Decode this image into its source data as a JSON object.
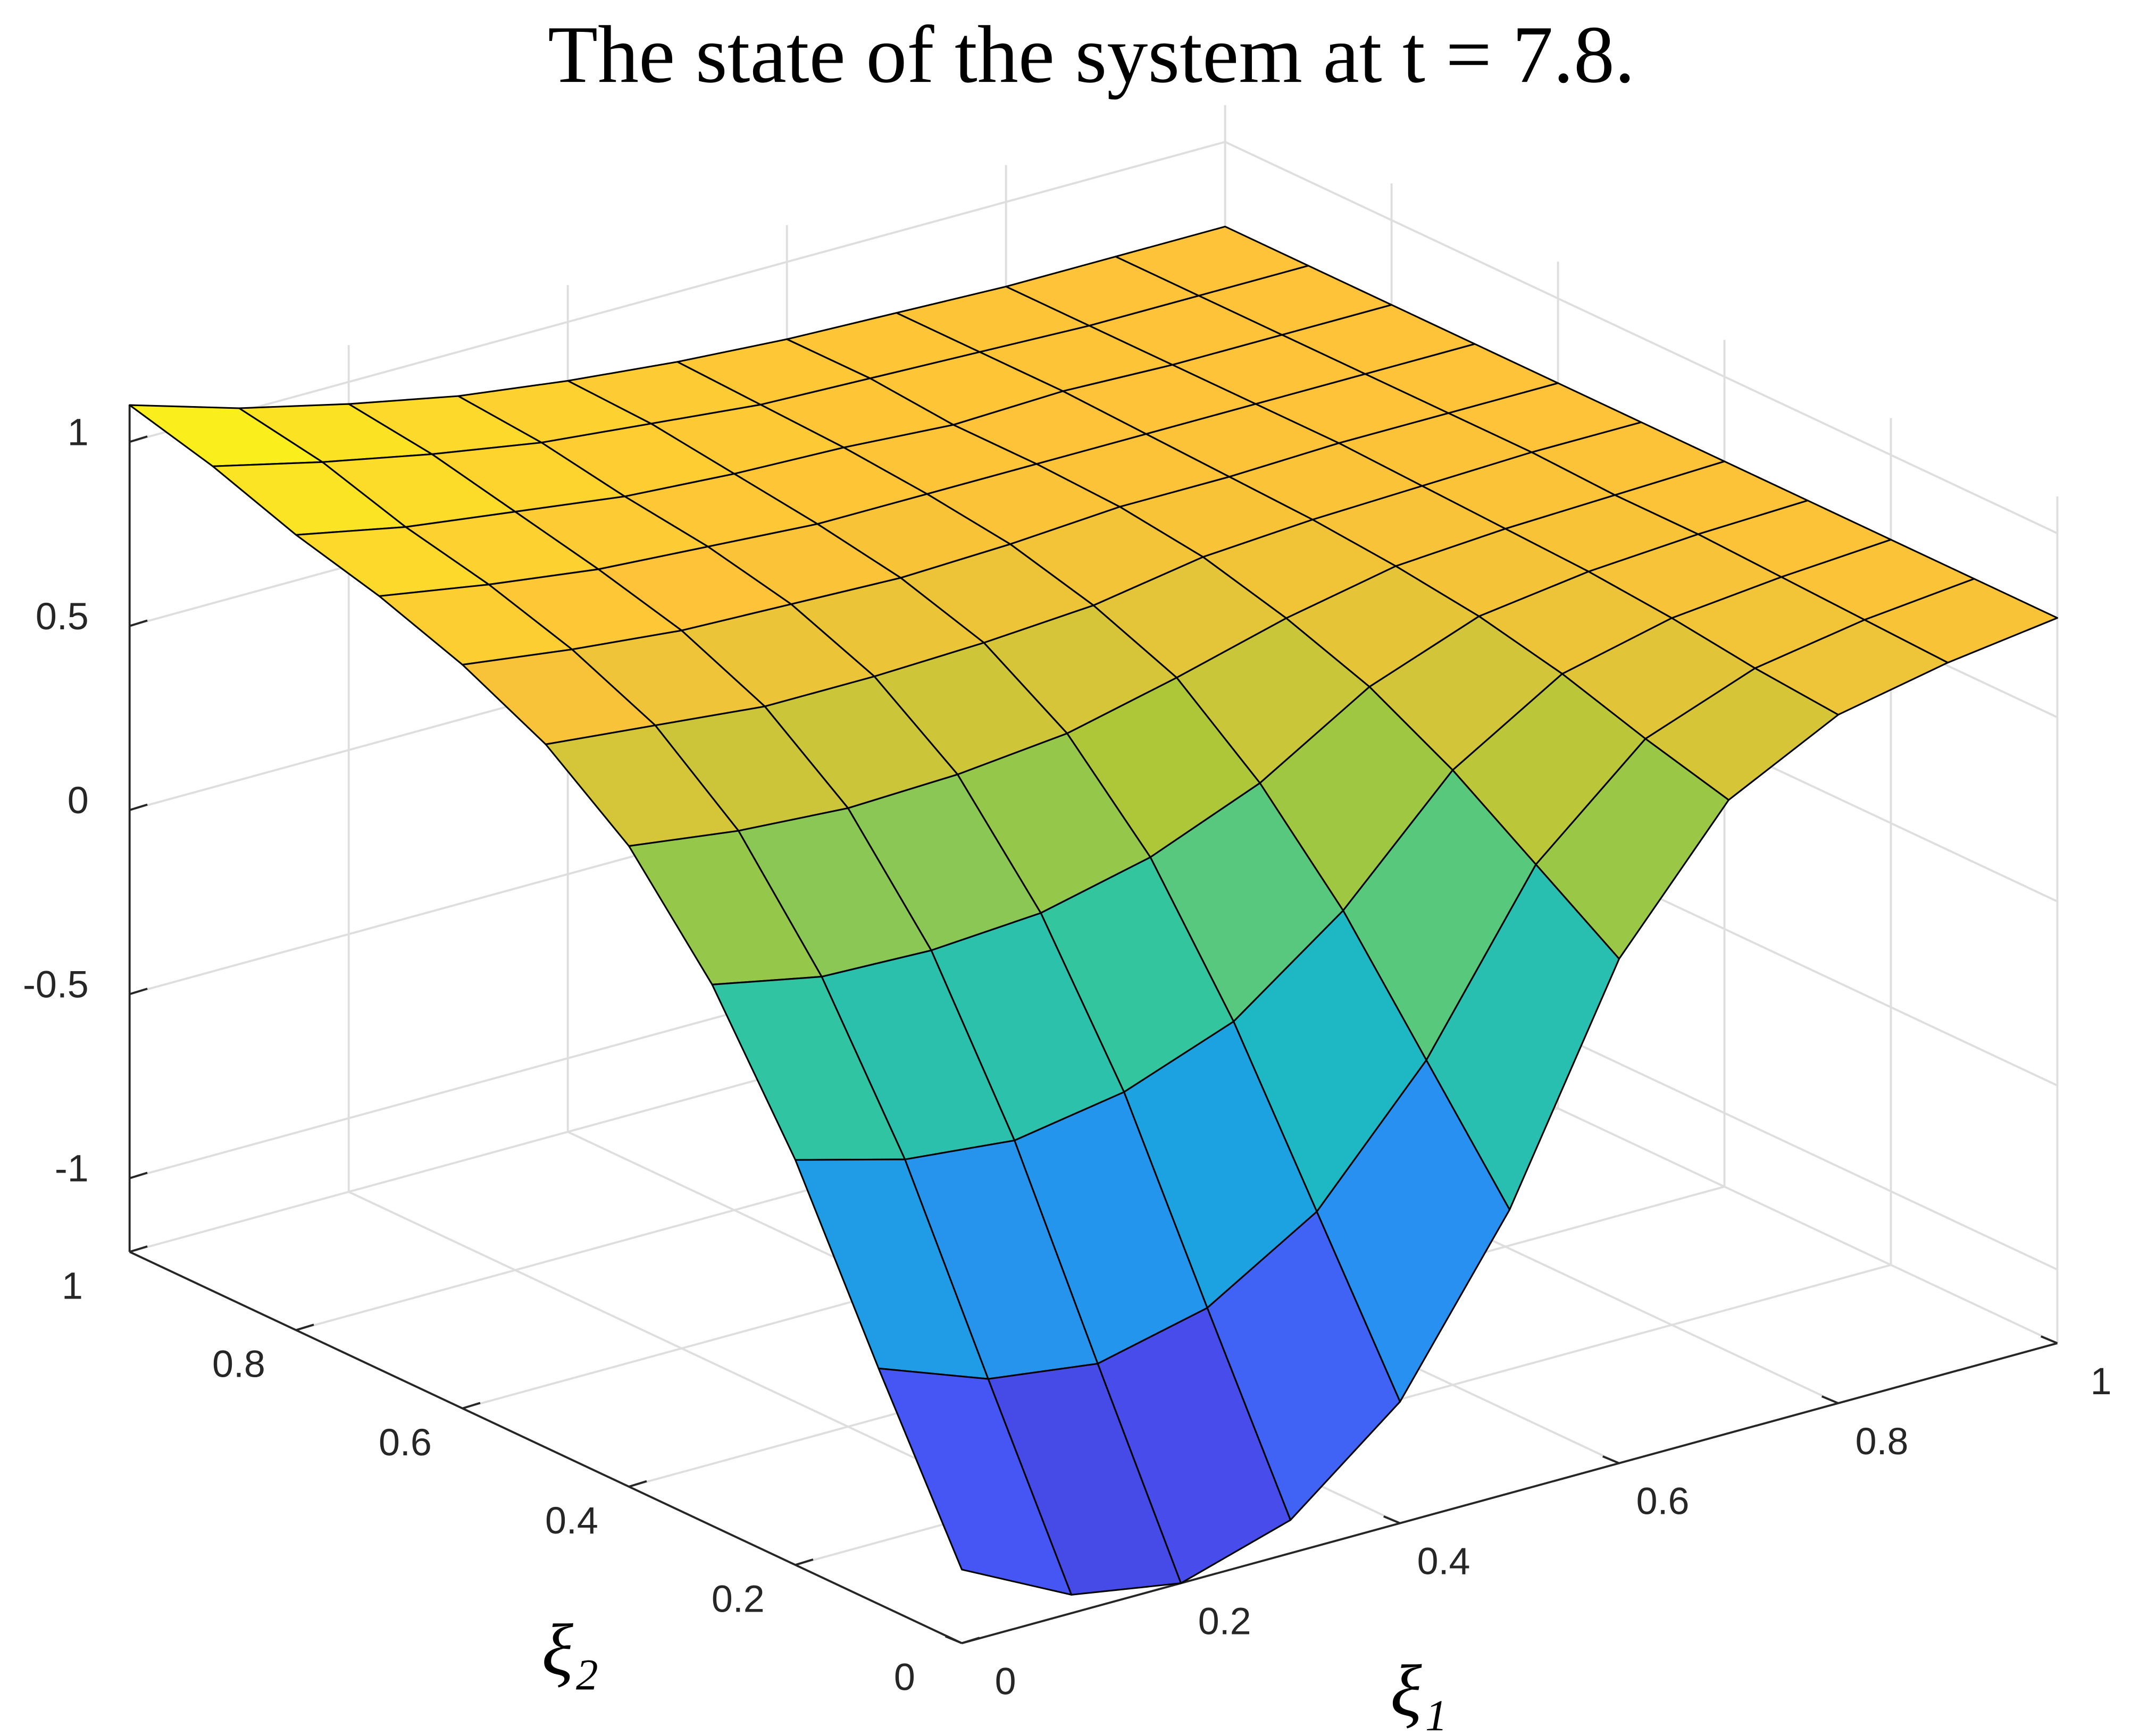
{
  "chart_data": {
    "type": "surface",
    "title": "The state of the system at t = 7.8.",
    "xlabel": "ξ₁",
    "ylabel": "ξ₂",
    "x": [
      0,
      0.1,
      0.2,
      0.3,
      0.4,
      0.5,
      0.6,
      0.7,
      0.8,
      0.9,
      1
    ],
    "y": [
      0,
      0.1,
      0.2,
      0.3,
      0.4,
      0.5,
      0.6,
      0.7,
      0.8,
      0.9,
      1
    ],
    "z": [
      [
        -1.0,
        -1.15,
        -1.2,
        -1.11,
        -0.87,
        -0.43,
        0.17,
        0.52,
        0.67,
        0.73,
        0.77
      ],
      [
        -0.56,
        -0.67,
        -0.71,
        -0.64,
        -0.46,
        -0.13,
        0.32,
        0.58,
        0.69,
        0.74,
        0.77
      ],
      [
        -0.1,
        -0.18,
        -0.21,
        -0.16,
        -0.05,
        0.17,
        0.47,
        0.65,
        0.72,
        0.75,
        0.77
      ],
      [
        0.27,
        0.21,
        0.2,
        0.22,
        0.29,
        0.41,
        0.59,
        0.7,
        0.74,
        0.76,
        0.77
      ],
      [
        0.54,
        0.5,
        0.48,
        0.49,
        0.52,
        0.59,
        0.67,
        0.73,
        0.75,
        0.76,
        0.77
      ],
      [
        0.71,
        0.68,
        0.65,
        0.65,
        0.66,
        0.68,
        0.73,
        0.75,
        0.76,
        0.77,
        0.77
      ],
      [
        0.82,
        0.78,
        0.75,
        0.74,
        0.73,
        0.74,
        0.76,
        0.76,
        0.77,
        0.77,
        0.77
      ],
      [
        0.9,
        0.85,
        0.81,
        0.79,
        0.77,
        0.77,
        0.77,
        0.77,
        0.77,
        0.77,
        0.77
      ],
      [
        0.96,
        0.9,
        0.86,
        0.82,
        0.8,
        0.79,
        0.77,
        0.78,
        0.77,
        0.77,
        0.77
      ],
      [
        1.04,
        0.97,
        0.91,
        0.86,
        0.83,
        0.8,
        0.79,
        0.78,
        0.77,
        0.77,
        0.77
      ],
      [
        1.1,
        1.01,
        0.94,
        0.88,
        0.84,
        0.81,
        0.79,
        0.78,
        0.77,
        0.77,
        0.77
      ]
    ],
    "xlim": [
      0,
      1
    ],
    "ylim": [
      0,
      1
    ],
    "zlim": [
      -1.2,
      1.1
    ],
    "xticks": [
      0,
      0.2,
      0.4,
      0.6,
      0.8,
      1
    ],
    "yticks": [
      0,
      0.2,
      0.4,
      0.6,
      0.8,
      1
    ],
    "zticks": [
      -1,
      -0.5,
      0,
      0.5,
      1
    ],
    "grid": true,
    "colormap": "parula",
    "edgecolor": "#000000"
  }
}
